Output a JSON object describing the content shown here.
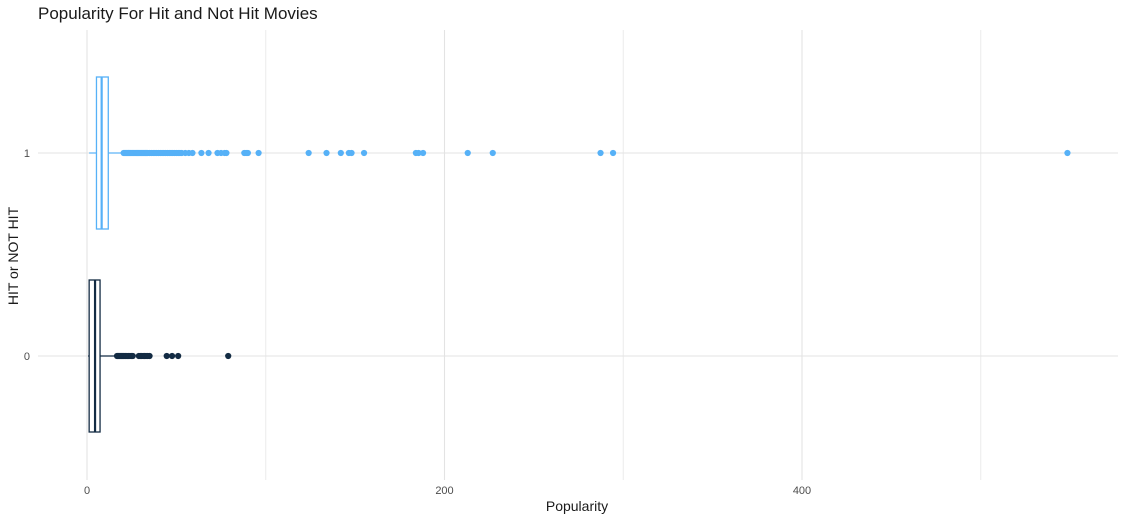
{
  "chart_data": {
    "type": "boxplot",
    "orientation": "horizontal",
    "title": "Popularity For Hit and Not Hit Movies",
    "xlabel": "Popularity",
    "ylabel": "HIT or NOT HIT",
    "xlim": [
      -2,
      575
    ],
    "x_ticks": [
      0,
      200,
      400
    ],
    "x_tick_labels": [
      "0",
      "200",
      "400"
    ],
    "categories": [
      "0",
      "1"
    ],
    "grid": true,
    "legend": "none",
    "groups": [
      {
        "category": "0",
        "color": "#132B43",
        "whisker_low": 0.6,
        "q1": 1.2,
        "median": 4.5,
        "q3": 7.3,
        "whisker_high": 16.5,
        "outliers": [
          16.8,
          17.3,
          17.8,
          18.3,
          18.8,
          19.3,
          19.8,
          20.3,
          20.8,
          21.5,
          22.3,
          23.1,
          24,
          24.8,
          25.6,
          29,
          29.8,
          30.6,
          31.4,
          32.2,
          33,
          34,
          35,
          44.6,
          47.6,
          51,
          79
        ]
      },
      {
        "category": "1",
        "color": "#56B1F7",
        "whisker_low": 1.2,
        "q1": 5.3,
        "median": 8.2,
        "q3": 11.9,
        "whisker_high": 20.2,
        "outliers": [
          20.5,
          21,
          21.5,
          22,
          22.5,
          23,
          23.5,
          24,
          24.5,
          25,
          25.5,
          26,
          26.5,
          27,
          27.5,
          28,
          28.5,
          29,
          29.5,
          30,
          30.5,
          31,
          31.5,
          32,
          32.5,
          33,
          33.5,
          34,
          35,
          36,
          37,
          38,
          39,
          40,
          41,
          42,
          43,
          44,
          45,
          46,
          47,
          48,
          49,
          50,
          51,
          52,
          53,
          55,
          57,
          59,
          64,
          68,
          73,
          75,
          77,
          78,
          88,
          89,
          90,
          96,
          124,
          134,
          142,
          146.5,
          148,
          155,
          184,
          185.5,
          188,
          213,
          227,
          287.3,
          294.3,
          548.5
        ]
      }
    ]
  }
}
